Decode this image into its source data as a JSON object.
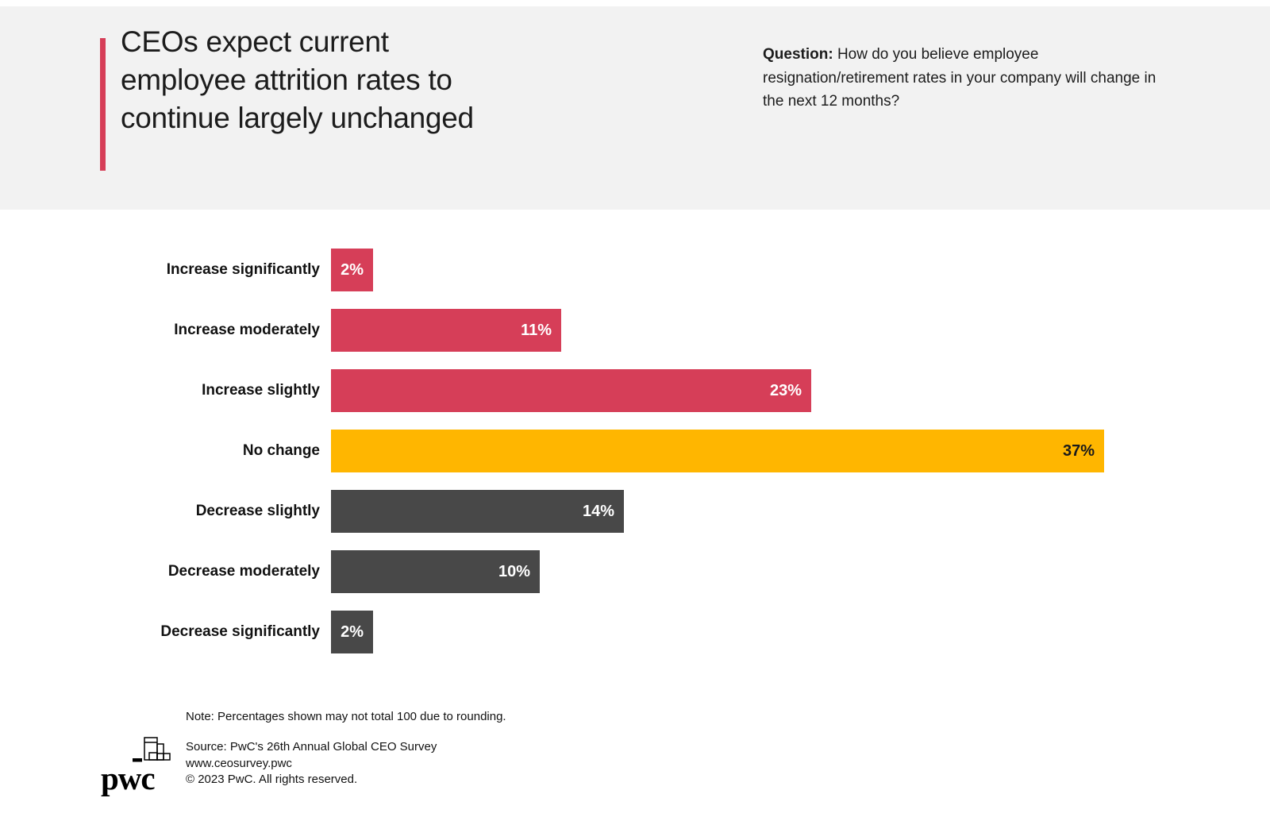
{
  "header": {
    "title": "CEOs expect current\nemployee attrition rates to\ncontinue largely unchanged",
    "question_label": "Question:",
    "question_text": " How do you believe employee\nresignation/retirement rates in your company will change in\nthe next 12 months?"
  },
  "chart_data": {
    "type": "bar",
    "orientation": "horizontal",
    "categories": [
      "Increase significantly",
      "Increase moderately",
      "Increase slightly",
      "No change",
      "Decrease slightly",
      "Decrease moderately",
      "Decrease significantly"
    ],
    "values": [
      2,
      11,
      23,
      37,
      14,
      10,
      2
    ],
    "value_labels": [
      "2%",
      "11%",
      "23%",
      "37%",
      "14%",
      "10%",
      "2%"
    ],
    "bar_colors": [
      "#d63e58",
      "#d63e58",
      "#d63e58",
      "#ffb600",
      "#484848",
      "#484848",
      "#484848"
    ],
    "value_label_colors": [
      "#ffffff",
      "#ffffff",
      "#ffffff",
      "#1a1a1a",
      "#ffffff",
      "#ffffff",
      "#ffffff"
    ],
    "xlim": [
      0,
      37
    ],
    "grid": false,
    "legend": "none",
    "title": "",
    "xlabel": "",
    "ylabel": ""
  },
  "footer": {
    "note": "Note: Percentages shown may not total 100 due to rounding.",
    "source": "Source: PwC's 26th Annual Global CEO Survey",
    "url": "www.ceosurvey.pwc",
    "copyright": "© 2023 PwC. All rights reserved.",
    "logo_text": "pwc"
  },
  "colors": {
    "accent": "#d63e58",
    "header_bg": "#f2f2f2",
    "increase": "#d63e58",
    "no_change": "#ffb600",
    "decrease": "#484848"
  }
}
